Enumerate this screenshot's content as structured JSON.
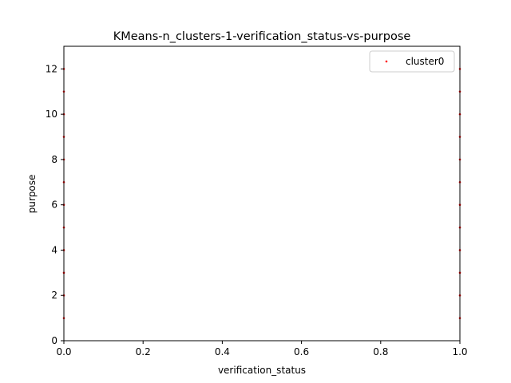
{
  "chart_data": {
    "type": "scatter",
    "title": "KMeans-n_clusters-1-verification_status-vs-purpose",
    "xlabel": "verification_status",
    "ylabel": "purpose",
    "xlim": [
      0.0,
      1.0
    ],
    "ylim": [
      0,
      13
    ],
    "x_ticks": [
      0.0,
      0.2,
      0.4,
      0.6,
      0.8,
      1.0
    ],
    "x_tick_labels": [
      "0.0",
      "0.2",
      "0.4",
      "0.6",
      "0.8",
      "1.0"
    ],
    "y_ticks": [
      0,
      2,
      4,
      6,
      8,
      10,
      12
    ],
    "y_tick_labels": [
      "0",
      "2",
      "4",
      "6",
      "8",
      "10",
      "12"
    ],
    "grid": false,
    "legend_position": "top-right",
    "series": [
      {
        "name": "cluster0",
        "color": "#ff0000",
        "points": [
          [
            0,
            1
          ],
          [
            0,
            2
          ],
          [
            0,
            3
          ],
          [
            0,
            4
          ],
          [
            0,
            5
          ],
          [
            0,
            6
          ],
          [
            0,
            7
          ],
          [
            0,
            8
          ],
          [
            0,
            9
          ],
          [
            0,
            10
          ],
          [
            0,
            11
          ],
          [
            0,
            12
          ],
          [
            1,
            1
          ],
          [
            1,
            2
          ],
          [
            1,
            3
          ],
          [
            1,
            4
          ],
          [
            1,
            5
          ],
          [
            1,
            6
          ],
          [
            1,
            7
          ],
          [
            1,
            8
          ],
          [
            1,
            9
          ],
          [
            1,
            10
          ],
          [
            1,
            11
          ],
          [
            1,
            12
          ]
        ]
      }
    ]
  }
}
